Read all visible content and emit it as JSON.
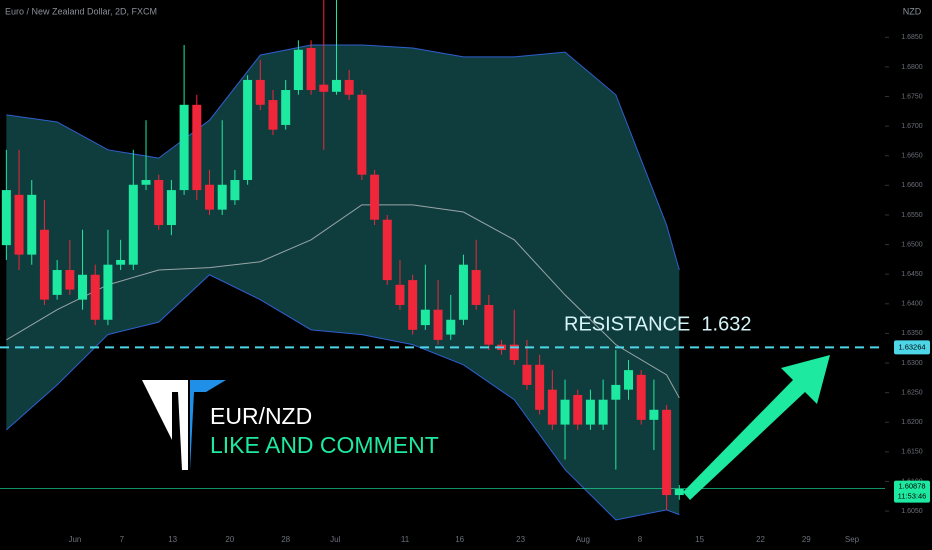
{
  "chart_data": {
    "type": "candlestick",
    "title": "Euro / New Zealand Dollar, 2D, FXCM",
    "currency": "NZD",
    "up_color": "#1de9a0",
    "down_color": "#f0263a",
    "band_color": "#0f3d3d",
    "open": [
      1.6499,
      1.6584,
      1.6483,
      1.6525,
      1.6415,
      1.6457,
      1.6407,
      1.6449,
      1.6373,
      1.6466,
      1.6466,
      1.6601,
      1.6609,
      1.6533,
      1.6592,
      1.6736,
      1.6601,
      1.6559,
      1.6575,
      1.6609,
      1.6778,
      1.6744,
      1.6702,
      1.6761,
      1.6832,
      1.677,
      1.6758,
      1.6778,
      1.6753,
      1.6618,
      1.6542,
      1.6432,
      1.644,
      1.6364,
      1.639,
      1.6348,
      1.6373,
      1.6457,
      1.6398,
      1.6331,
      1.6331,
      1.6297,
      1.6297,
      1.6255,
      1.6196,
      1.6246,
      1.6196,
      1.6196,
      1.6238,
      1.6255,
      1.628,
      1.6204,
      1.6221,
      1.6077
    ],
    "high": [
      1.666,
      1.666,
      1.6609,
      1.6575,
      1.6474,
      1.6508,
      1.6525,
      1.6466,
      1.6525,
      1.6508,
      1.666,
      1.671,
      1.6618,
      1.6609,
      1.6837,
      1.6753,
      1.6626,
      1.671,
      1.6626,
      1.6786,
      1.6812,
      1.6761,
      1.6778,
      1.6845,
      1.6845,
      1.6913,
      1.6913,
      1.6795,
      1.6761,
      1.6626,
      1.655,
      1.6474,
      1.6449,
      1.6466,
      1.644,
      1.6415,
      1.6483,
      1.6508,
      1.6415,
      1.6339,
      1.639,
      1.6339,
      1.6314,
      1.6288,
      1.6272,
      1.6255,
      1.6255,
      1.6272,
      1.6322,
      1.6305,
      1.6288,
      1.6272,
      1.6229,
      1.6094
    ],
    "low": [
      1.6474,
      1.6457,
      1.6466,
      1.6398,
      1.6407,
      1.6415,
      1.639,
      1.6364,
      1.6364,
      1.6457,
      1.6457,
      1.6592,
      1.6525,
      1.6516,
      1.6584,
      1.6575,
      1.655,
      1.655,
      1.6567,
      1.6601,
      1.6727,
      1.6685,
      1.6694,
      1.6753,
      1.6753,
      1.666,
      1.6753,
      1.6744,
      1.6609,
      1.6533,
      1.6432,
      1.639,
      1.6348,
      1.6356,
      1.6331,
      1.6339,
      1.6364,
      1.639,
      1.6322,
      1.6314,
      1.6297,
      1.6255,
      1.6213,
      1.6187,
      1.6137,
      1.6187,
      1.6187,
      1.6187,
      1.612,
      1.6238,
      1.6196,
      1.6153,
      1.6052,
      1.6069
    ],
    "close": [
      1.6592,
      1.6483,
      1.6584,
      1.6407,
      1.6457,
      1.6424,
      1.6449,
      1.6373,
      1.6466,
      1.6474,
      1.6601,
      1.6609,
      1.6533,
      1.6592,
      1.6736,
      1.6592,
      1.6559,
      1.6601,
      1.6609,
      1.6778,
      1.6736,
      1.6694,
      1.6761,
      1.6829,
      1.6761,
      1.6758,
      1.6778,
      1.6753,
      1.6618,
      1.6542,
      1.644,
      1.6398,
      1.6356,
      1.639,
      1.6339,
      1.6373,
      1.6466,
      1.6398,
      1.6331,
      1.6322,
      1.6305,
      1.6263,
      1.6221,
      1.6196,
      1.6238,
      1.6196,
      1.6238,
      1.6238,
      1.6263,
      1.6288,
      1.6204,
      1.6221,
      1.6077,
      1.6088
    ],
    "band": {
      "index": [
        0,
        4,
        8,
        12,
        16,
        20,
        24,
        28,
        32,
        36,
        40,
        44,
        48,
        52,
        53
      ],
      "upper": [
        1.6719,
        1.6707,
        1.666,
        1.6646,
        1.671,
        1.682,
        1.6837,
        1.6837,
        1.6832,
        1.6817,
        1.6817,
        1.6825,
        1.6753,
        1.6533,
        1.6457
      ],
      "middle": [
        1.6339,
        1.639,
        1.6432,
        1.6457,
        1.6461,
        1.6471,
        1.6508,
        1.6567,
        1.6567,
        1.6555,
        1.6508,
        1.6415,
        1.6331,
        1.628,
        1.6241
      ],
      "lower": [
        1.6187,
        1.6263,
        1.6348,
        1.6369,
        1.6449,
        1.6407,
        1.6356,
        1.6348,
        1.6331,
        1.6297,
        1.6238,
        1.612,
        1.6035,
        1.6052,
        1.6044
      ]
    },
    "xlim": [
      -0.5,
      69.2
    ],
    "xticks": [
      {
        "value": 5.4,
        "label": "Jun"
      },
      {
        "value": 9.1,
        "label": "7"
      },
      {
        "value": 13.1,
        "label": "13"
      },
      {
        "value": 17.6,
        "label": "20"
      },
      {
        "value": 22,
        "label": "28"
      },
      {
        "value": 25.9,
        "label": "Jul"
      },
      {
        "value": 31.4,
        "label": "11"
      },
      {
        "value": 35.7,
        "label": "16"
      },
      {
        "value": 40.5,
        "label": "23"
      },
      {
        "value": 45.4,
        "label": "Aug"
      },
      {
        "value": 49.9,
        "label": "8"
      },
      {
        "value": 54.6,
        "label": "15"
      },
      {
        "value": 59.4,
        "label": "22"
      },
      {
        "value": 63,
        "label": "29"
      },
      {
        "value": 66.6,
        "label": "Sep"
      }
    ],
    "ylim": [
      1.6018,
      1.6913
    ],
    "yticks": [
      {
        "value": 1.605,
        "label": "1.6050"
      },
      {
        "value": 1.61,
        "label": "1.6100"
      },
      {
        "value": 1.615,
        "label": "1.6150"
      },
      {
        "value": 1.62,
        "label": "1.6200"
      },
      {
        "value": 1.625,
        "label": "1.6250"
      },
      {
        "value": 1.63,
        "label": "1.6300"
      },
      {
        "value": 1.635,
        "label": "1.6350"
      },
      {
        "value": 1.64,
        "label": "1.6400"
      },
      {
        "value": 1.645,
        "label": "1.6450"
      },
      {
        "value": 1.65,
        "label": "1.6500"
      },
      {
        "value": 1.655,
        "label": "1.6550"
      },
      {
        "value": 1.66,
        "label": "1.6600"
      },
      {
        "value": 1.665,
        "label": "1.6650"
      },
      {
        "value": 1.67,
        "label": "1.6700"
      },
      {
        "value": 1.675,
        "label": "1.6750"
      },
      {
        "value": 1.68,
        "label": "1.6800"
      },
      {
        "value": 1.685,
        "label": "1.6850"
      }
    ],
    "resistance": {
      "value": 1.63264,
      "text": "RESISTANCE  1.632",
      "color": "#4dd6e8"
    },
    "last_price": {
      "value": 1.60878,
      "countdown": "11:53:46",
      "color": "#1de9a0"
    },
    "annotations": {
      "symbol": "EUR/NZD",
      "call": "LIKE AND COMMENT"
    }
  }
}
